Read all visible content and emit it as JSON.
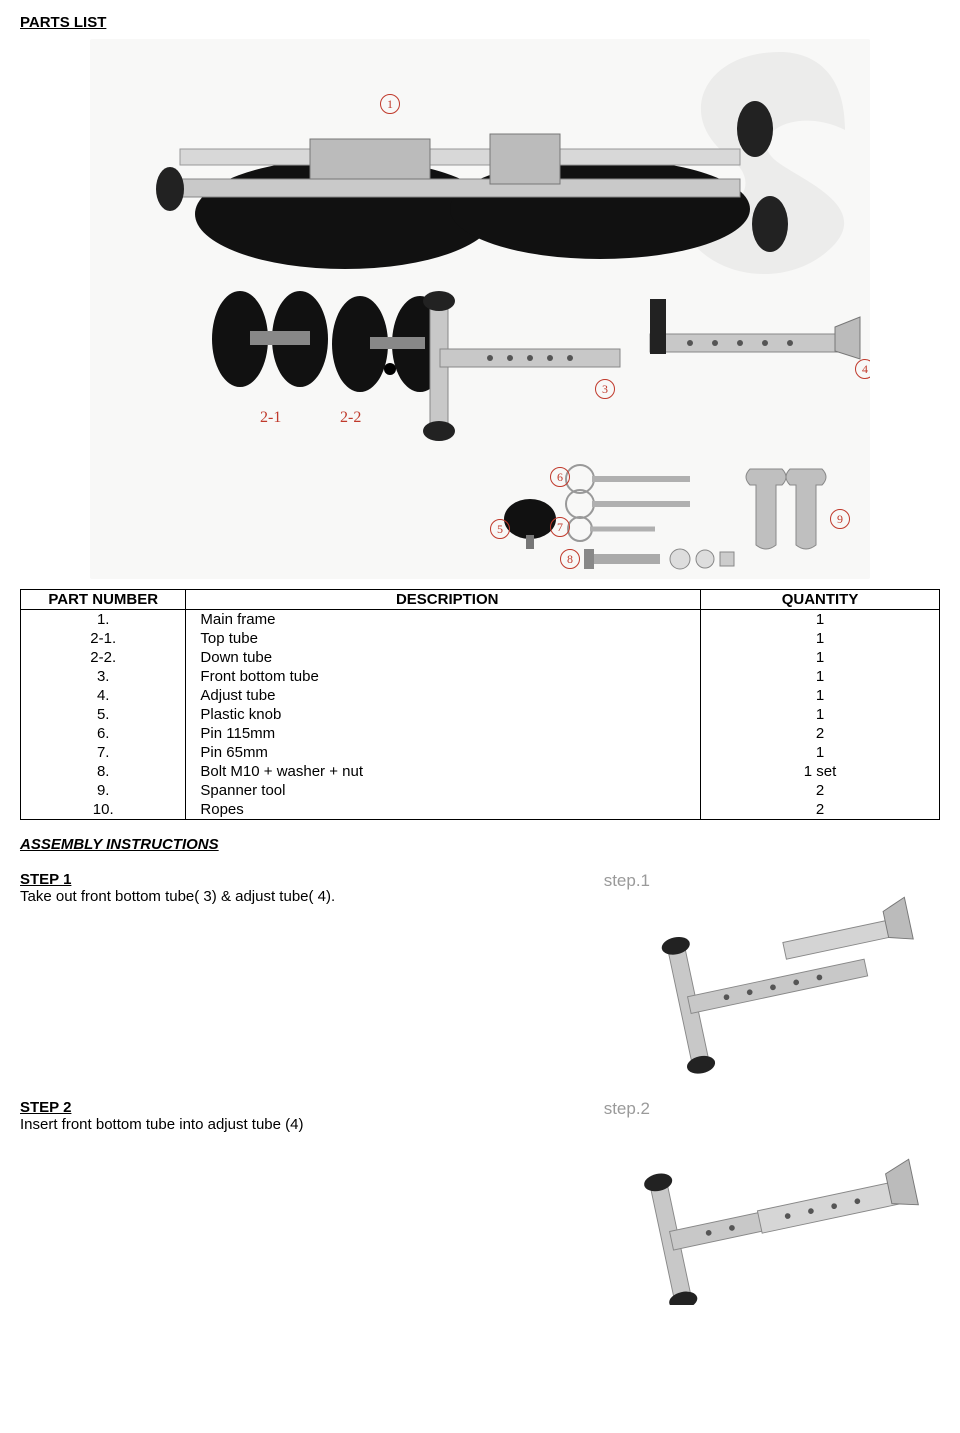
{
  "headings": {
    "parts_list": "PARTS LIST",
    "assembly": "ASSEMBLY INSTRUCTIONS"
  },
  "hero_callouts": {
    "c1": "1",
    "c21": "2-1",
    "c22": "2-2",
    "c3": "3",
    "c4": "4",
    "c5": "5",
    "c6": "6",
    "c7": "7",
    "c8": "8",
    "c9": "9"
  },
  "parts_table": {
    "headers": {
      "part_no": "PART NUMBER",
      "desc": "DESCRIPTION",
      "qty": "QUANTITY"
    },
    "rows": [
      {
        "no": "1.",
        "desc": "Main frame",
        "qty": "1"
      },
      {
        "no": "2-1.",
        "desc": "Top tube",
        "qty": "1"
      },
      {
        "no": "2-2.",
        "desc": "Down tube",
        "qty": "1"
      },
      {
        "no": "3.",
        "desc": "Front bottom tube",
        "qty": "1"
      },
      {
        "no": "4.",
        "desc": "Adjust tube",
        "qty": "1"
      },
      {
        "no": "5.",
        "desc": "Plastic knob",
        "qty": "1"
      },
      {
        "no": "6.",
        "desc": "Pin 115mm",
        "qty": "2"
      },
      {
        "no": "7.",
        "desc": "Pin 65mm",
        "qty": "1"
      },
      {
        "no": "8.",
        "desc": "Bolt M10 + washer + nut",
        "qty": "1 set"
      },
      {
        "no": "9.",
        "desc": "Spanner tool",
        "qty": "2"
      },
      {
        "no": "10.",
        "desc": "Ropes",
        "qty": "2"
      }
    ]
  },
  "steps": {
    "s1": {
      "title": "STEP 1",
      "text": "Take out front bottom tube( 3) & adjust tube( 4).",
      "label": "step.1"
    },
    "s2": {
      "title": "STEP 2",
      "text": "Insert front bottom tube into adjust tube (4)",
      "label": "step.2"
    }
  },
  "style": {
    "callout_color": "#c0392b",
    "watermark_opacity": 0.08
  }
}
